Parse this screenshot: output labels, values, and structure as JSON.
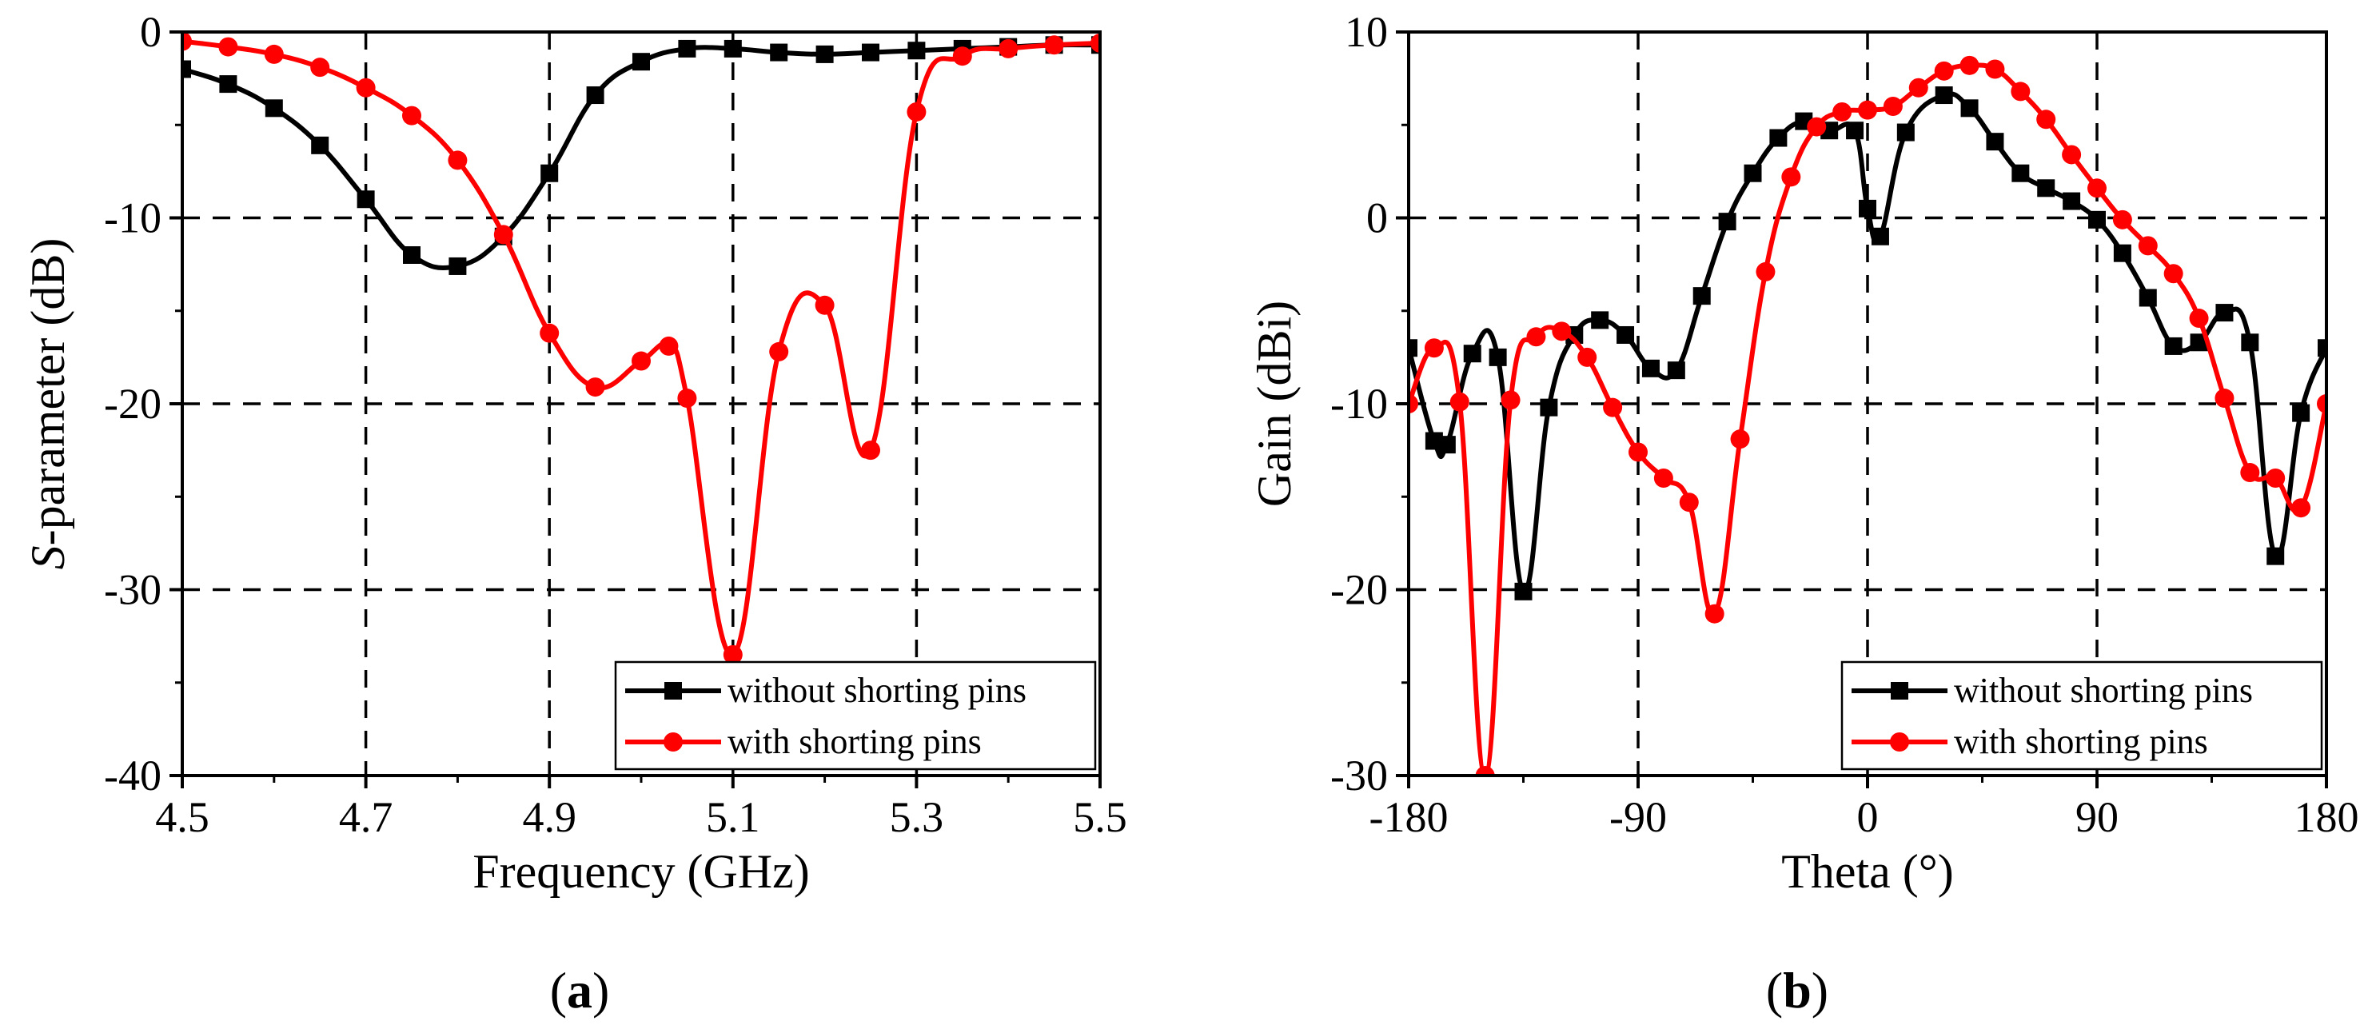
{
  "chart_data": [
    {
      "type": "line",
      "panel_label": "a",
      "xlabel": "Frequency (GHz)",
      "ylabel_prefix": "S",
      "ylabel_suffix": "-parameter (dB)",
      "xlim": [
        4.5,
        5.5
      ],
      "ylim": [
        -40,
        0
      ],
      "xticks": [
        4.5,
        4.7,
        4.9,
        5.1,
        5.3,
        5.5
      ],
      "xtick_labels": [
        "4.5",
        "4.7",
        "4.9",
        "5.1",
        "5.3",
        "5.5"
      ],
      "yticks": [
        0,
        -10,
        -20,
        -30,
        -40
      ],
      "ytick_labels": [
        "0",
        "-10",
        "-20",
        "-30",
        "-40"
      ],
      "grid": true,
      "legend_position": "bottom-right",
      "series": [
        {
          "name": "without shorting pins",
          "color": "#000000",
          "marker": "square",
          "x": [
            4.5,
            4.55,
            4.6,
            4.65,
            4.7,
            4.75,
            4.8,
            4.85,
            4.9,
            4.95,
            5.0,
            5.05,
            5.1,
            5.15,
            5.2,
            5.25,
            5.3,
            5.35,
            5.4,
            5.45,
            5.5
          ],
          "y": [
            -2,
            -2.8,
            -4.1,
            -6.1,
            -9.0,
            -12.0,
            -12.6,
            -11.0,
            -7.6,
            -3.4,
            -1.6,
            -0.9,
            -0.9,
            -1.1,
            -1.2,
            -1.1,
            -1.0,
            -0.9,
            -0.8,
            -0.7,
            -0.7
          ]
        },
        {
          "name": "with shorting pins",
          "color": "#ff0000",
          "marker": "circle",
          "x": [
            4.5,
            4.55,
            4.6,
            4.65,
            4.7,
            4.75,
            4.8,
            4.85,
            4.9,
            4.95,
            5.0,
            5.03,
            5.05,
            5.1,
            5.15,
            5.2,
            5.25,
            5.3,
            5.35,
            5.4,
            5.45,
            5.5
          ],
          "y": [
            -0.5,
            -0.8,
            -1.2,
            -1.9,
            -3.0,
            -4.5,
            -6.9,
            -10.9,
            -16.2,
            -19.1,
            -17.7,
            -16.9,
            -19.7,
            -33.5,
            -17.2,
            -14.7,
            -22.5,
            -4.3,
            -1.3,
            -0.9,
            -0.7,
            -0.6
          ]
        }
      ]
    },
    {
      "type": "line",
      "panel_label": "b",
      "xlabel": "Theta (°)",
      "ylabel": "Gain (dBi)",
      "xlim": [
        -180,
        180
      ],
      "ylim": [
        -30,
        10
      ],
      "xticks": [
        -180,
        -90,
        0,
        90,
        180
      ],
      "xtick_labels": [
        "-180",
        "-90",
        "0",
        "90",
        "180"
      ],
      "yticks": [
        10,
        0,
        -10,
        -20,
        -30
      ],
      "ytick_labels": [
        "10",
        "0",
        "-10",
        "-20",
        "-30"
      ],
      "grid": true,
      "legend_position": "bottom-right",
      "series": [
        {
          "name": "without shorting pins",
          "color": "#000000",
          "marker": "square",
          "x": [
            -180,
            -170,
            -165,
            -155,
            -145,
            -135,
            -125,
            -115,
            -105,
            -95,
            -85,
            -75,
            -65,
            -55,
            -45,
            -35,
            -25,
            -15,
            -5,
            0,
            5,
            15,
            30,
            40,
            50,
            60,
            70,
            80,
            90,
            100,
            110,
            120,
            130,
            140,
            150,
            160,
            170,
            180
          ],
          "y": [
            -7,
            -12,
            -12.2,
            -7.3,
            -7.5,
            -20.1,
            -10.2,
            -6.3,
            -5.5,
            -6.3,
            -8.1,
            -8.2,
            -4.2,
            -0.2,
            2.4,
            4.3,
            5.2,
            4.7,
            4.7,
            0.5,
            -1.0,
            4.6,
            6.6,
            5.9,
            4.1,
            2.4,
            1.6,
            0.9,
            -0.1,
            -1.9,
            -4.3,
            -6.9,
            -6.7,
            -5.1,
            -6.7,
            -18.2,
            -10.5,
            -7.0
          ]
        },
        {
          "name": "with shorting pins",
          "color": "#ff0000",
          "marker": "circle",
          "x": [
            -180,
            -170,
            -160,
            -150,
            -140,
            -130,
            -120,
            -110,
            -100,
            -90,
            -80,
            -70,
            -60,
            -50,
            -40,
            -30,
            -20,
            -10,
            0,
            10,
            20,
            30,
            40,
            50,
            60,
            70,
            80,
            90,
            100,
            110,
            120,
            130,
            140,
            150,
            160,
            170,
            180
          ],
          "y": [
            -10,
            -7,
            -9.9,
            -30,
            -9.8,
            -6.4,
            -6.1,
            -7.5,
            -10.2,
            -12.6,
            -14.0,
            -15.3,
            -21.3,
            -11.9,
            -2.9,
            2.2,
            4.9,
            5.7,
            5.8,
            6.0,
            7.0,
            7.9,
            8.2,
            8.0,
            6.8,
            5.3,
            3.4,
            1.6,
            -0.1,
            -1.5,
            -3.0,
            -5.4,
            -9.7,
            -13.7,
            -14.0,
            -15.6,
            -10.0
          ]
        }
      ]
    }
  ]
}
